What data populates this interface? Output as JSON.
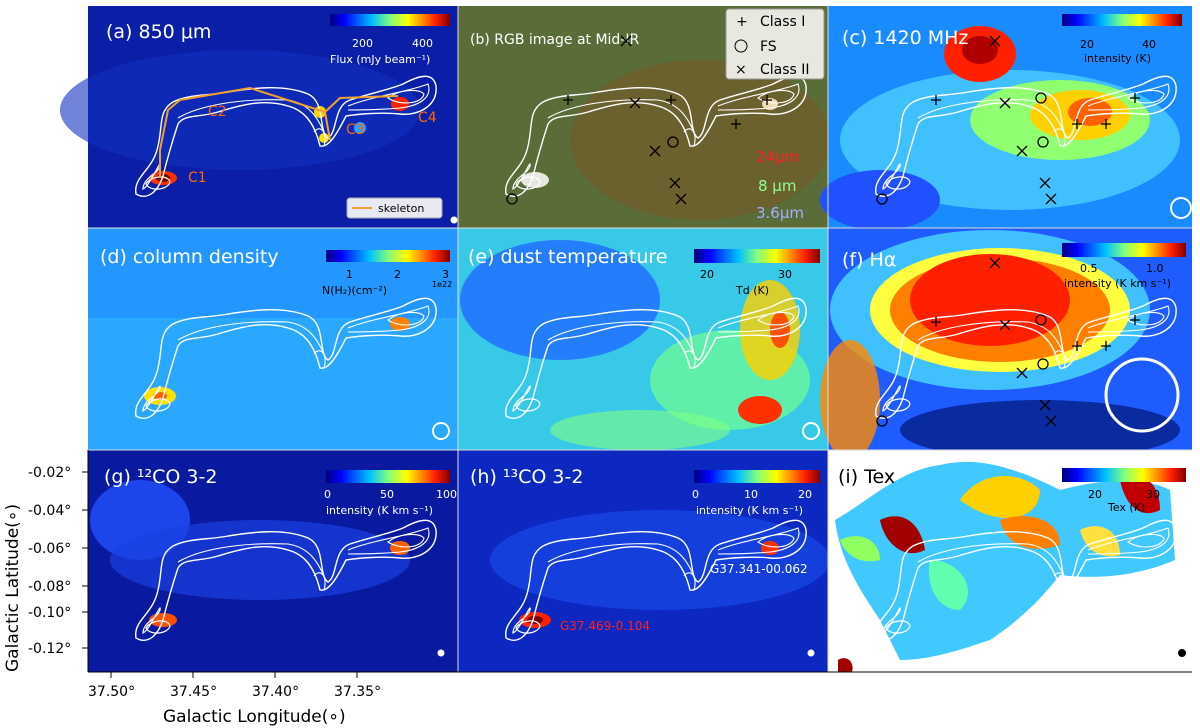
{
  "axes": {
    "xlabel": "Galactic Longitude(∘)",
    "ylabel": "Galactic Latitude(∘)",
    "xticks": [
      "37.50°",
      "37.45°",
      "37.40°",
      "37.35°"
    ],
    "yticks": [
      "-0.02°",
      "-0.04°",
      "-0.06°",
      "-0.08°",
      "-0.10°",
      "-0.12°"
    ]
  },
  "panels": [
    {
      "id": "a",
      "title": "(a) 850 μm",
      "colorbar": {
        "ticks": [
          "200",
          "400"
        ],
        "label": "Flux (mJy beam⁻¹)"
      },
      "clumps": [
        "C1",
        "C2",
        "C3",
        "C4"
      ],
      "legend": "skeleton"
    },
    {
      "id": "b",
      "title": "(b) RGB image at Mid-IR",
      "legend": [
        "Class I",
        "FS",
        "Class II"
      ],
      "bands": [
        "24μm",
        "8 μm",
        "3.6μm"
      ]
    },
    {
      "id": "c",
      "title": "(c) 1420 MHz",
      "colorbar": {
        "ticks": [
          "20",
          "40"
        ],
        "label": "intensity (K)"
      }
    },
    {
      "id": "d",
      "title": "(d) column density",
      "colorbar": {
        "ticks": [
          "1",
          "2",
          "3"
        ],
        "label": "N(H₂)(cm⁻²)",
        "exponent": "1e22"
      }
    },
    {
      "id": "e",
      "title": "(e) dust temperature",
      "colorbar": {
        "ticks": [
          "20",
          "30"
        ],
        "label": "Td (K)"
      }
    },
    {
      "id": "f",
      "title": "(f) Hα",
      "colorbar": {
        "ticks": [
          "0.5",
          "1.0"
        ],
        "label": "intensity (K km s⁻¹)"
      }
    },
    {
      "id": "g",
      "title": "(g) ¹²CO 3-2",
      "colorbar": {
        "ticks": [
          "0",
          "50",
          "100"
        ],
        "label": "intensity (K km s⁻¹)"
      }
    },
    {
      "id": "h",
      "title": "(h) ¹³CO 3-2",
      "colorbar": {
        "ticks": [
          "0",
          "10",
          "20"
        ],
        "label": "intensity (K km s⁻¹)"
      },
      "sources": [
        "G37.341-00.062",
        "G37.469-0.104"
      ]
    },
    {
      "id": "i",
      "title": "(i) Tex",
      "colorbar": {
        "ticks": [
          "20",
          "30"
        ],
        "label": "Tex (K)"
      }
    }
  ],
  "colors": {
    "jet": [
      "#00007f",
      "#0000ff",
      "#007fff",
      "#00ffff",
      "#7fff7f",
      "#ffff00",
      "#ff7f00",
      "#ff0000",
      "#7f0000"
    ],
    "clump_label": "#ff6a00",
    "skeleton": "#f0a030",
    "source_red": "#ff2020"
  }
}
